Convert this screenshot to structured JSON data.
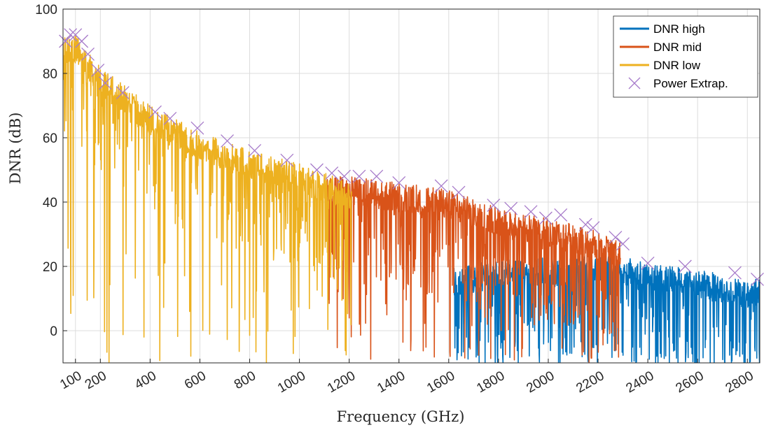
{
  "chart_data": {
    "type": "line",
    "title": "",
    "xlabel": "Frequency (GHz)",
    "ylabel": "DNR (dB)",
    "xlim": [
      50,
      2850
    ],
    "ylim": [
      -10,
      100
    ],
    "x_ticks": [
      100,
      200,
      400,
      600,
      800,
      1000,
      1200,
      1400,
      1600,
      1800,
      2000,
      2200,
      2400,
      2600,
      2800
    ],
    "x_tick_labels": [
      "100",
      "200",
      "400",
      "600",
      "800",
      "1000",
      "1200",
      "1400",
      "1600",
      "1800",
      "2000",
      "2200",
      "2400",
      "2600",
      "2800"
    ],
    "y_ticks": [
      0,
      20,
      40,
      60,
      80,
      100
    ],
    "y_tick_labels": [
      "0",
      "20",
      "40",
      "60",
      "80",
      "100"
    ],
    "grid": true,
    "legend_position": "top-right",
    "series": [
      {
        "name": "DNR high",
        "color": "#0072BD",
        "x_range": [
          1620,
          2850
        ],
        "envelope_x": [
          1620,
          1800,
          2000,
          2200,
          2300,
          2400,
          2600,
          2800,
          2850
        ],
        "envelope_y": [
          20,
          22,
          23,
          23,
          23,
          21,
          19,
          16,
          16
        ],
        "floor": -10
      },
      {
        "name": "DNR mid",
        "color": "#D95319",
        "x_range": [
          1110,
          2290
        ],
        "envelope_x": [
          1110,
          1200,
          1400,
          1600,
          1800,
          2000,
          2200,
          2290
        ],
        "envelope_y": [
          48,
          48,
          46,
          44,
          38,
          35,
          31,
          28
        ],
        "floor": -10
      },
      {
        "name": "DNR low",
        "color": "#EDB120",
        "x_range": [
          50,
          1210
        ],
        "envelope_x": [
          50,
          100,
          200,
          400,
          600,
          800,
          1000,
          1210
        ],
        "envelope_y": [
          92,
          92,
          82,
          70,
          62,
          56,
          52,
          46
        ],
        "floor": -10
      },
      {
        "name": "Power Extrap.",
        "color": "#A77BCA",
        "marker": "x",
        "x": [
          60,
          80,
          100,
          125,
          150,
          190,
          220,
          290,
          420,
          480,
          590,
          710,
          820,
          950,
          1070,
          1130,
          1180,
          1240,
          1310,
          1400,
          1570,
          1640,
          1780,
          1850,
          1930,
          1990,
          2050,
          2150,
          2180,
          2270,
          2300,
          2400,
          2550,
          2750,
          2840
        ],
        "y": [
          90,
          92,
          92,
          90,
          86,
          81,
          77,
          74,
          68,
          66,
          63,
          59,
          56,
          53,
          50,
          49,
          48,
          48,
          48,
          46,
          45,
          43,
          39,
          38,
          37,
          35,
          36,
          33,
          32,
          29,
          27,
          21,
          20,
          18,
          16
        ]
      }
    ]
  }
}
